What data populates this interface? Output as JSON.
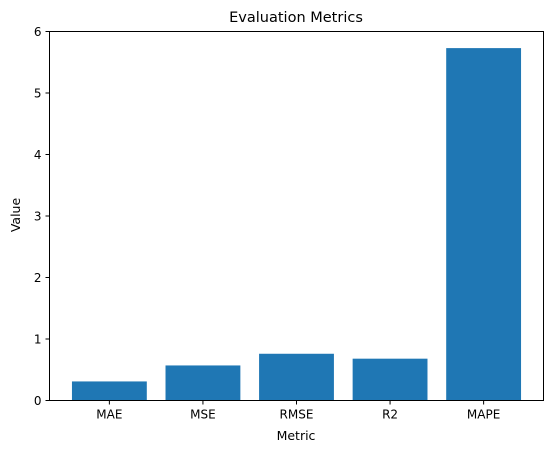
{
  "chart_data": {
    "type": "bar",
    "title": "Evaluation Metrics",
    "xlabel": "Metric",
    "ylabel": "Value",
    "categories": [
      "MAE",
      "MSE",
      "RMSE",
      "R2",
      "MAPE"
    ],
    "values": [
      0.31,
      0.57,
      0.76,
      0.68,
      5.73
    ],
    "ylim": [
      0,
      6
    ],
    "yticks": [
      0,
      1,
      2,
      3,
      4,
      5,
      6
    ],
    "ytick_labels": [
      "0",
      "1",
      "2",
      "3",
      "4",
      "5",
      "6"
    ],
    "bar_color": "#1f77b4",
    "grid": false,
    "legend": "none"
  }
}
